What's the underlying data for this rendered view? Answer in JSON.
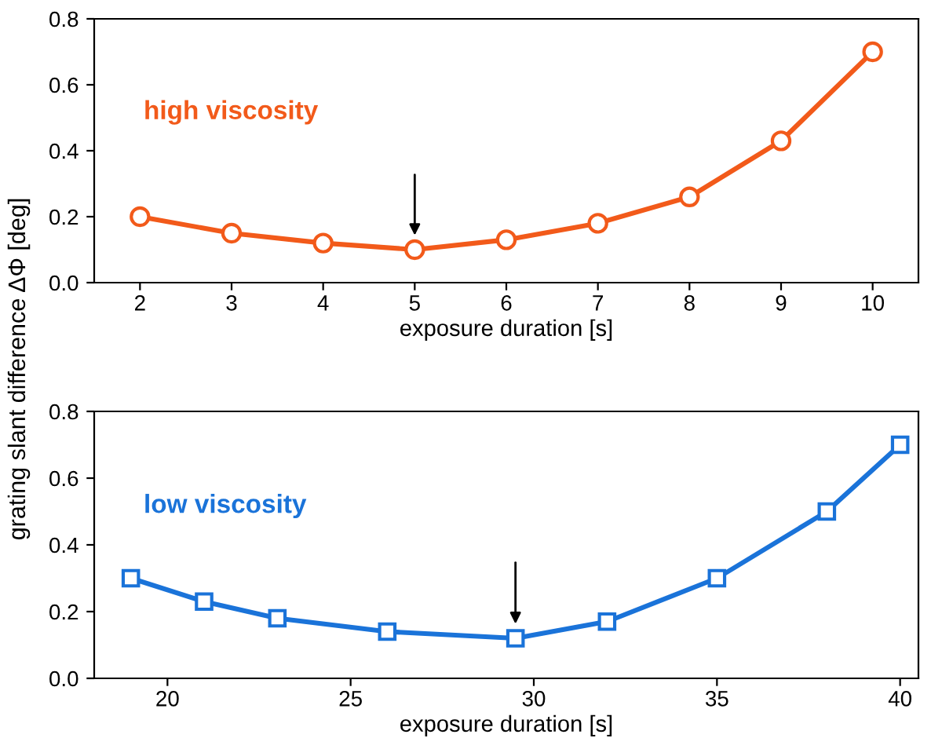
{
  "chart_data": [
    {
      "type": "line",
      "xlabel": "exposure duration [s]",
      "ylabel": "grating slant difference ΔΦ [deg]",
      "x": [
        2,
        3,
        4,
        5,
        6,
        7,
        8,
        9,
        10
      ],
      "series": [
        {
          "name": "high viscosity",
          "color": "#f25a1a",
          "values": [
            0.2,
            0.15,
            0.12,
            0.1,
            0.13,
            0.18,
            0.26,
            0.43,
            0.7
          ]
        }
      ],
      "marker": "circle",
      "xlim": [
        1.5,
        10.5
      ],
      "xticks": [
        2,
        3,
        4,
        5,
        6,
        7,
        8,
        9,
        10
      ],
      "ylim": [
        0,
        0.8
      ],
      "yticks": [
        {
          "value": 0,
          "label": "0.0"
        },
        {
          "value": 0.2,
          "label": "0.2"
        },
        {
          "value": 0.4,
          "label": "0.4"
        },
        {
          "value": 0.6,
          "label": "0.6"
        },
        {
          "value": 0.8,
          "label": "0.8"
        }
      ],
      "grid": false,
      "legend": false
    },
    {
      "type": "line",
      "xlabel": "exposure duration [s]",
      "x": [
        19,
        21,
        23,
        26,
        29.5,
        32,
        35,
        38,
        40
      ],
      "series": [
        {
          "name": "low viscosity",
          "color": "#1a73d9",
          "values": [
            0.3,
            0.23,
            0.18,
            0.14,
            0.12,
            0.17,
            0.3,
            0.5,
            0.7
          ]
        }
      ],
      "marker": "square",
      "xlim": [
        18,
        40.5
      ],
      "xticks": [
        20,
        25,
        30,
        35,
        40
      ],
      "ylim": [
        0,
        0.8
      ],
      "yticks": [
        {
          "value": 0,
          "label": "0.0"
        },
        {
          "value": 0.2,
          "label": "0.2"
        },
        {
          "value": 0.4,
          "label": "0.4"
        },
        {
          "value": 0.6,
          "label": "0.6"
        },
        {
          "value": 0.8,
          "label": "0.8"
        }
      ],
      "grid": false,
      "legend": false
    }
  ]
}
